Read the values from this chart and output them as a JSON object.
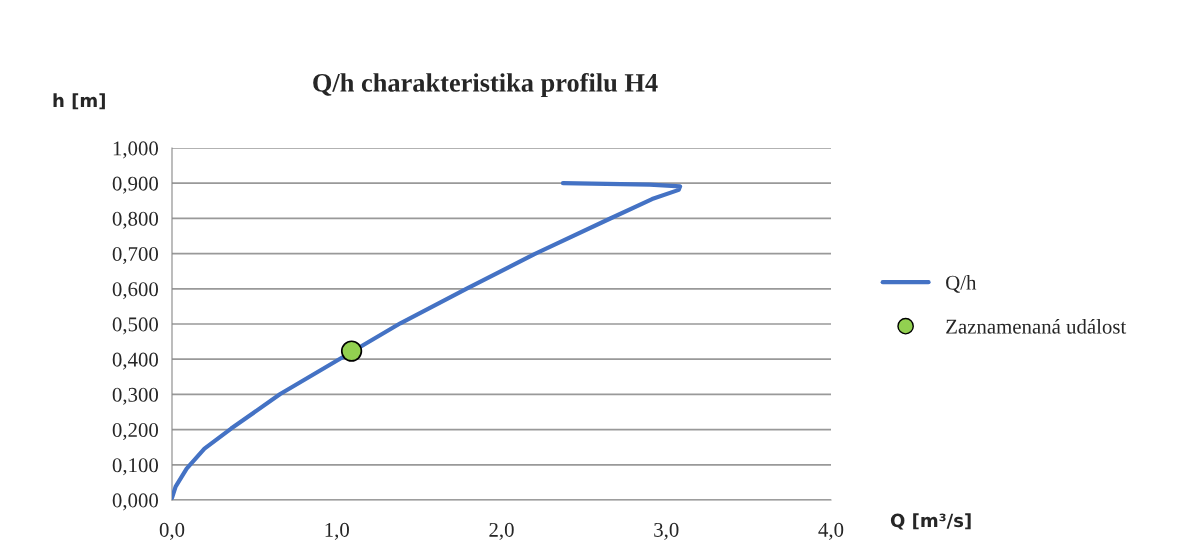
{
  "chart_data": {
    "type": "line",
    "title": "Q/h charakteristika profilu H4",
    "xlabel": "Q [m³/s]",
    "ylabel": "h [m]",
    "series": [
      {
        "name": "Q/h",
        "color": "#4472c4",
        "x": [
          0,
          0.022,
          0.089,
          0.197,
          0.359,
          0.657,
          1.386,
          1.792,
          2.197,
          2.657,
          2.914,
          3.076,
          3.084,
          2.9,
          2.373
        ],
        "values": [
          0.006,
          0.038,
          0.089,
          0.146,
          0.203,
          0.301,
          0.502,
          0.601,
          0.698,
          0.799,
          0.855,
          0.881,
          0.891,
          0.896,
          0.9
        ]
      },
      {
        "name": "Zaznamenaná událost",
        "type": "scatter",
        "color": "#92d050",
        "marker": "circle",
        "x": [
          1.09
        ],
        "values": [
          0.423
        ]
      }
    ],
    "xlim": [
      0,
      4
    ],
    "xticks": [
      {
        "value": 0,
        "label": "0,0"
      },
      {
        "value": 1,
        "label": "1,0"
      },
      {
        "value": 2,
        "label": "2,0"
      },
      {
        "value": 3,
        "label": "3,0"
      },
      {
        "value": 4,
        "label": "4,0"
      }
    ],
    "ylim": [
      0,
      1
    ],
    "yticks": [
      {
        "value": 0,
        "label": "0,000"
      },
      {
        "value": 0.1,
        "label": "0,100"
      },
      {
        "value": 0.2,
        "label": "0,200"
      },
      {
        "value": 0.3,
        "label": "0,300"
      },
      {
        "value": 0.4,
        "label": "0,400"
      },
      {
        "value": 0.5,
        "label": "0,500"
      },
      {
        "value": 0.6,
        "label": "0,600"
      },
      {
        "value": 0.7,
        "label": "0,700"
      },
      {
        "value": 0.8,
        "label": "0,800"
      },
      {
        "value": 0.9,
        "label": "0,900"
      },
      {
        "value": 1,
        "label": "1,000"
      }
    ],
    "grid": "y",
    "legend": "right"
  }
}
